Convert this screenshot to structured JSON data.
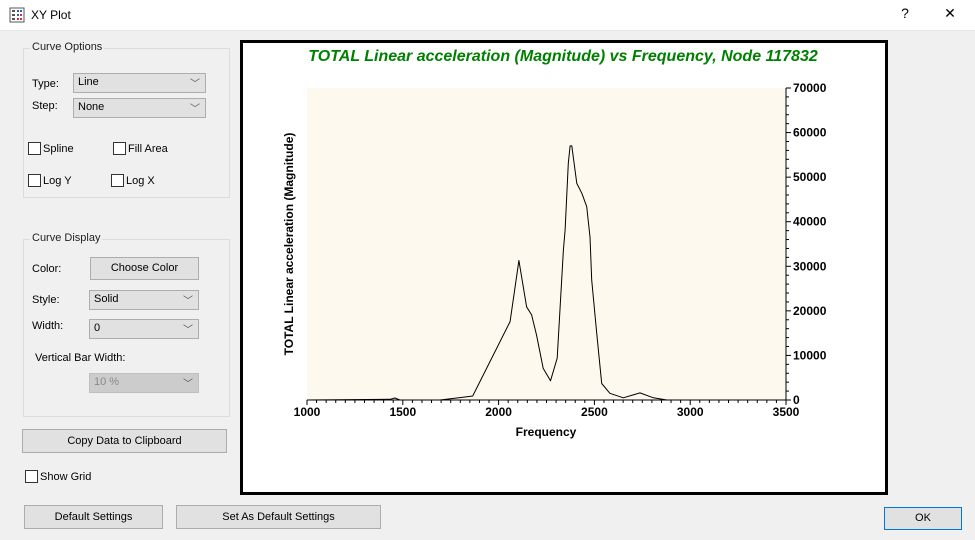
{
  "window": {
    "title": "XY Plot",
    "help": "?",
    "close": "✕"
  },
  "curve_options": {
    "legend": "Curve Options",
    "type_label": "Type:",
    "type_value": "Line",
    "step_label": "Step:",
    "step_value": "None",
    "spline": "Spline",
    "fill_area": "Fill Area",
    "log_y": "Log Y",
    "log_x": "Log X"
  },
  "curve_display": {
    "legend": "Curve Display",
    "color_label": "Color:",
    "choose_color": "Choose Color",
    "style_label": "Style:",
    "style_value": "Solid",
    "width_label": "Width:",
    "width_value": "0",
    "vbar_label": "Vertical Bar Width:",
    "vbar_value": "10 %"
  },
  "buttons": {
    "copy": "Copy Data to Clipboard",
    "default_settings": "Default Settings",
    "set_default": "Set As Default Settings",
    "ok": "OK"
  },
  "show_grid": "Show Grid",
  "chart_data": {
    "type": "line",
    "title": "TOTAL Linear acceleration (Magnitude) vs Frequency, Node 117832",
    "xlabel": "Frequency",
    "ylabel": "TOTAL Linear acceleration (Magnitude)",
    "xlim": [
      1000,
      3500
    ],
    "ylim": [
      0,
      70000
    ],
    "xticks": [
      "1000",
      "1500",
      "2000",
      "2500",
      "3000",
      "3500"
    ],
    "yticks": [
      "0",
      "10000",
      "20000",
      "30000",
      "40000",
      "50000",
      "60000",
      "70000"
    ],
    "y_axis_side": "right",
    "grid": false,
    "colors": {
      "title": "#008000",
      "line": "#000000",
      "plot_bg": "#fdf9ee"
    },
    "x": [
      1000,
      1433,
      1459,
      1485,
      1694,
      1814,
      1865,
      2060,
      2106,
      2146,
      2172,
      2198,
      2233,
      2271,
      2306,
      2338,
      2347,
      2364,
      2373,
      2382,
      2408,
      2434,
      2460,
      2477,
      2486,
      2512,
      2538,
      2581,
      2651,
      2738,
      2808,
      2878,
      3500
    ],
    "y": [
      0,
      150,
      450,
      0,
      0,
      600,
      900,
      17600,
      31300,
      20900,
      19100,
      14600,
      7100,
      4300,
      9400,
      33700,
      38100,
      53100,
      57000,
      57000,
      48600,
      46400,
      43400,
      36600,
      26900,
      15000,
      3700,
      1500,
      500,
      1600,
      500,
      0,
      0
    ]
  }
}
